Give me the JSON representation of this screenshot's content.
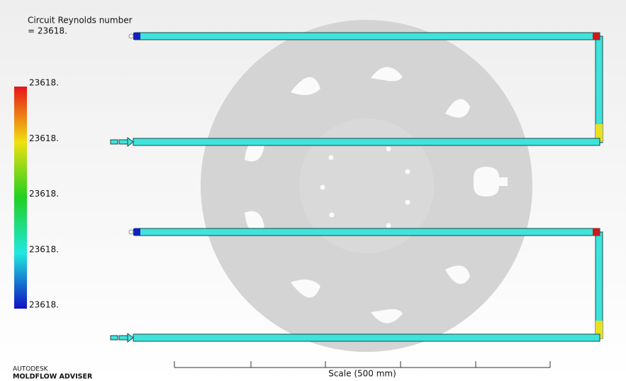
{
  "result": {
    "title": "Circuit Reynolds number",
    "value": " = 23618."
  },
  "legend": {
    "labels": [
      "23618.",
      "23618.",
      "23618.",
      "23618.",
      "23618."
    ]
  },
  "scale": {
    "label": "Scale (500 mm)"
  },
  "branding": {
    "company": "AUTODESK",
    "product": "MOLDFLOW ADVISER"
  }
}
